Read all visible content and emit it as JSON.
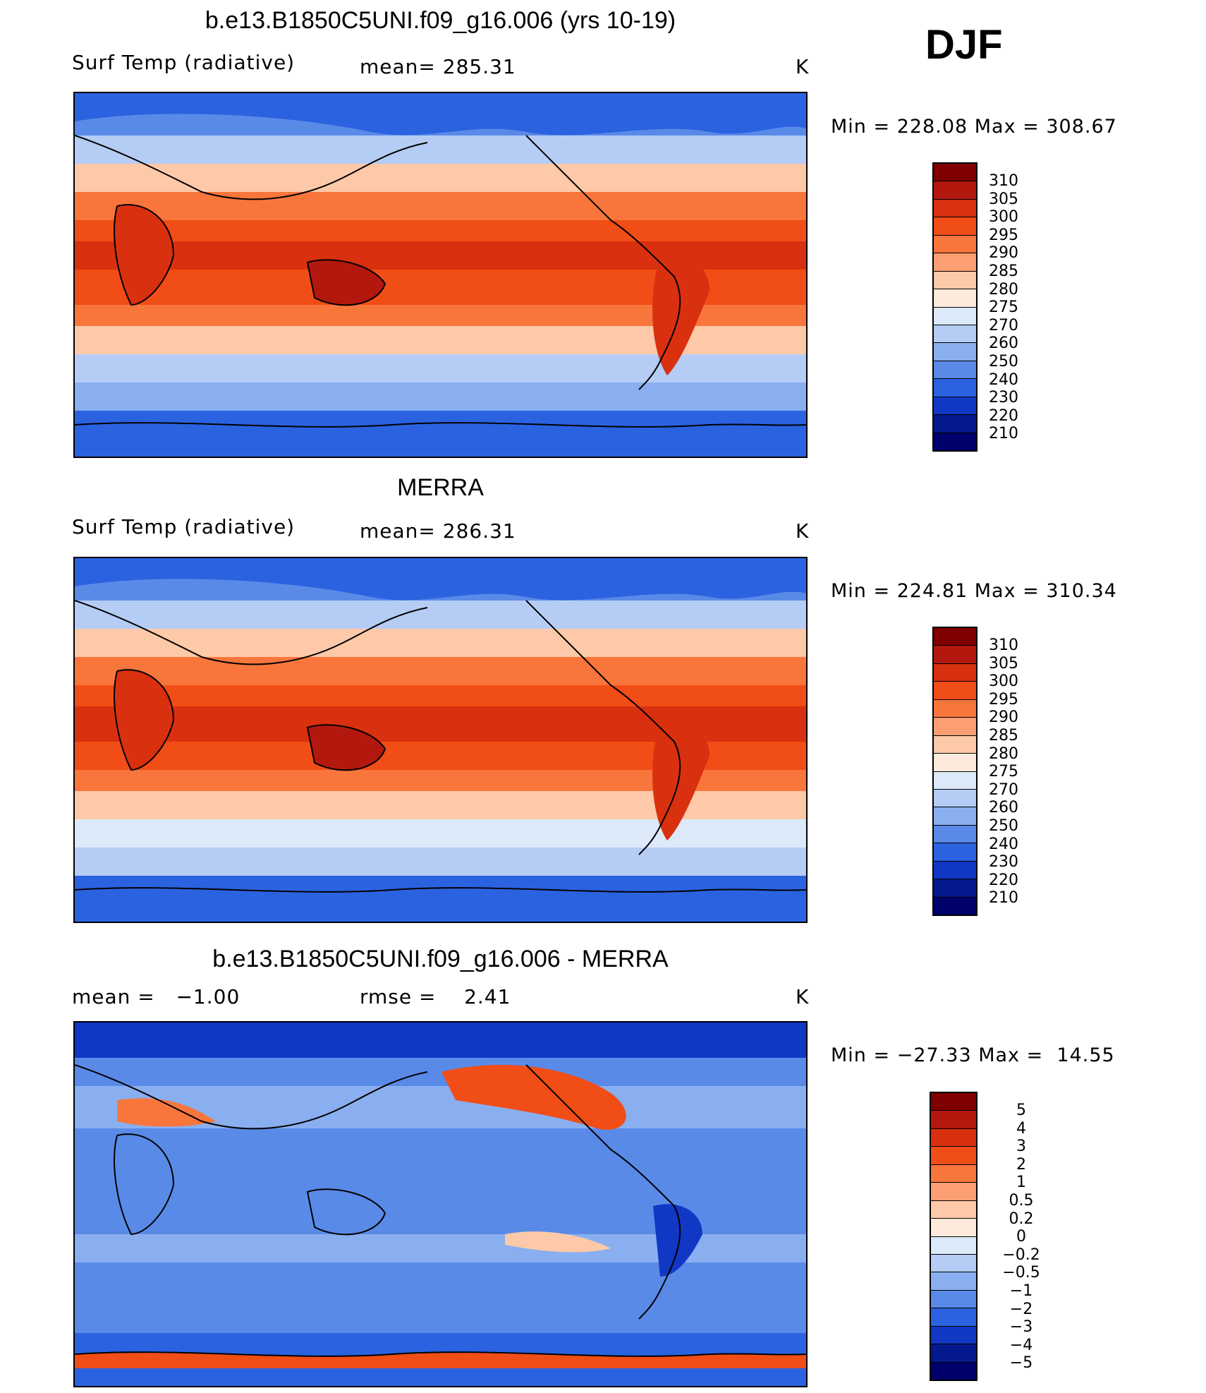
{
  "season": "DJF",
  "panels": [
    {
      "title": "b.e13.B1850C5UNI.f09_g16.006 (yrs 10-19)",
      "left_label": "Surf Temp (radiative)",
      "center_label": "mean= 285.31",
      "units": "K",
      "minmax": "Min = 228.08 Max = 308.67",
      "colorbar": [
        "310",
        "305",
        "300",
        "295",
        "290",
        "285",
        "280",
        "275",
        "270",
        "260",
        "250",
        "240",
        "230",
        "220",
        "210"
      ]
    },
    {
      "title": "MERRA",
      "left_label": "Surf Temp (radiative)",
      "center_label": "mean= 286.31",
      "units": "K",
      "minmax": "Min = 224.81 Max = 310.34",
      "colorbar": [
        "310",
        "305",
        "300",
        "295",
        "290",
        "285",
        "280",
        "275",
        "270",
        "260",
        "250",
        "240",
        "230",
        "220",
        "210"
      ]
    },
    {
      "title": "b.e13.B1850C5UNI.f09_g16.006 - MERRA",
      "left_label": "mean =   −1.00",
      "center_label": "rmse =    2.41",
      "units": "K",
      "minmax": "Min = −27.33 Max =  14.55",
      "colorbar": [
        "5",
        "4",
        "3",
        "2",
        "1",
        "0.5",
        "0.2",
        "0",
        "−0.2",
        "−0.5",
        "−1",
        "−2",
        "−3",
        "−4",
        "−5"
      ]
    }
  ],
  "colors": {
    "abs_scale": [
      "#7f0000",
      "#b2180e",
      "#d9300f",
      "#f04d17",
      "#f8763c",
      "#fb9e72",
      "#fdc9a8",
      "#feeadc",
      "#dce9f9",
      "#b5cdf5",
      "#8aaff0",
      "#5a8ae8",
      "#2b62e0",
      "#1038c4",
      "#041a8c",
      "#00006b"
    ],
    "diff_scale": [
      "#7f0000",
      "#b2180e",
      "#d9300f",
      "#f04d17",
      "#f8763c",
      "#fb9e72",
      "#fdc9a8",
      "#feeadc",
      "#dce9f9",
      "#b5cdf5",
      "#8aaff0",
      "#5a8ae8",
      "#2b62e0",
      "#1038c4",
      "#041a8c",
      "#00006b"
    ]
  }
}
